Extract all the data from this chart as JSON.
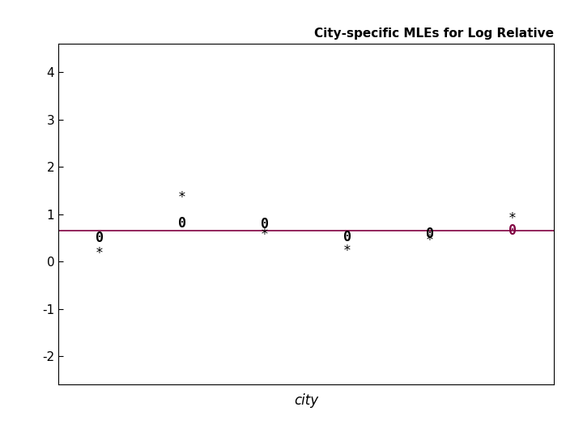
{
  "title": "City-specific MLEs for Log Relative",
  "xlabel": "city",
  "ylabel": "",
  "xlim": [
    0.5,
    6.5
  ],
  "ylim": [
    -2.6,
    4.6
  ],
  "yticks": [
    -2,
    -1,
    0,
    1,
    2,
    3,
    4
  ],
  "hline_y": 0.65,
  "hline_color": "#800040",
  "cities": [
    1,
    2,
    3,
    4,
    5,
    6
  ],
  "zero_points": [
    0.5,
    0.8,
    0.78,
    0.52,
    0.58,
    0.65
  ],
  "star_points": [
    0.18,
    1.35,
    0.57,
    0.22,
    0.44,
    0.9
  ],
  "marker_zero_color": "#000000",
  "marker_star_color": "#000000",
  "bg_color": "#ffffff",
  "plot_bg_color": "#ffffff",
  "figsize": [
    7.2,
    5.4
  ],
  "dpi": 100
}
